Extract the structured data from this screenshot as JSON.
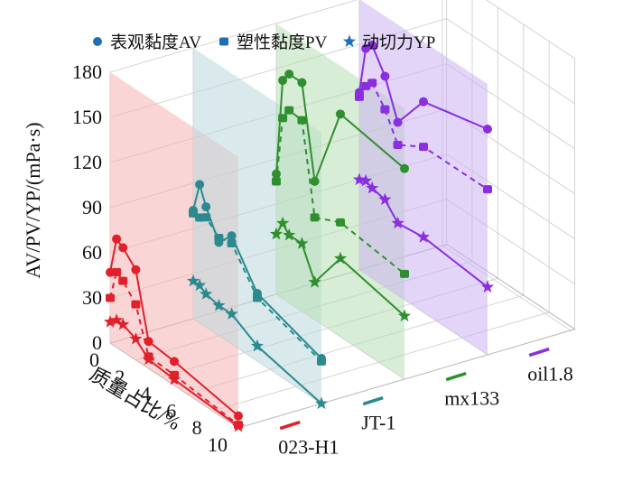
{
  "chart_data": {
    "type": "line",
    "title": "",
    "ylabel": "AV/PV/YP/(mPa·s)",
    "xlabel": "质量占比/%",
    "ylim": [
      0,
      180
    ],
    "yticks": [
      "0",
      "30",
      "60",
      "90",
      "120",
      "150",
      "180"
    ],
    "xlim": [
      0,
      10
    ],
    "xticks": [
      "0",
      "2",
      "4",
      "6",
      "8",
      "10"
    ],
    "grid": true,
    "legend_position": "top",
    "legend": [
      {
        "label": "表观黏度AV",
        "marker": "circle",
        "color": "#1f6fb5"
      },
      {
        "label": "塑性黏度PV",
        "marker": "square",
        "color": "#1f6fb5"
      },
      {
        "label": "动切力YP",
        "marker": "star",
        "color": "#1f6fb5"
      }
    ],
    "groups": [
      {
        "name": "023-H1",
        "color": "#e0202a",
        "plane_color": "#f6b3b3",
        "x": [
          0,
          0.5,
          1,
          2,
          3,
          5,
          10
        ],
        "AV": [
          47,
          72,
          69,
          60,
          18,
          16,
          8
        ],
        "PV": [
          30,
          50,
          47,
          37,
          8,
          7,
          2
        ],
        "YP": [
          14,
          18,
          18,
          14,
          6,
          4,
          1
        ]
      },
      {
        "name": "JT-1",
        "color": "#2a8a8f",
        "plane_color": "#bcd9dc",
        "x": [
          0,
          0.5,
          1,
          2,
          3,
          5,
          10
        ],
        "AV": [
          72,
          92,
          80,
          62,
          72,
          45,
          30
        ],
        "PV": [
          70,
          70,
          73,
          65,
          67,
          42,
          28
        ],
        "YP": [
          25,
          25,
          22,
          20,
          20,
          10,
          0
        ]
      },
      {
        "name": "mx133",
        "color": "#2f8f2f",
        "plane_color": "#b8deb4",
        "x": [
          0,
          0.5,
          1,
          2,
          3,
          5,
          10
        ],
        "AV": [
          80,
          145,
          152,
          152,
          92,
          148,
          140
        ],
        "PV": [
          75,
          120,
          128,
          127,
          68,
          76,
          70
        ],
        "YP": [
          40,
          50,
          45,
          45,
          25,
          52,
          42
        ]
      },
      {
        "name": "oil1.8",
        "color": "#8a2ee0",
        "plane_color": "#ccb3f2",
        "x": [
          0,
          0.5,
          1,
          2,
          3,
          5,
          10
        ],
        "AV": [
          118,
          150,
          155,
          140,
          115,
          140,
          150
        ],
        "PV": [
          115,
          125,
          130,
          118,
          100,
          110,
          110
        ],
        "YP": [
          60,
          62,
          60,
          58,
          48,
          50,
          45
        ]
      }
    ]
  }
}
